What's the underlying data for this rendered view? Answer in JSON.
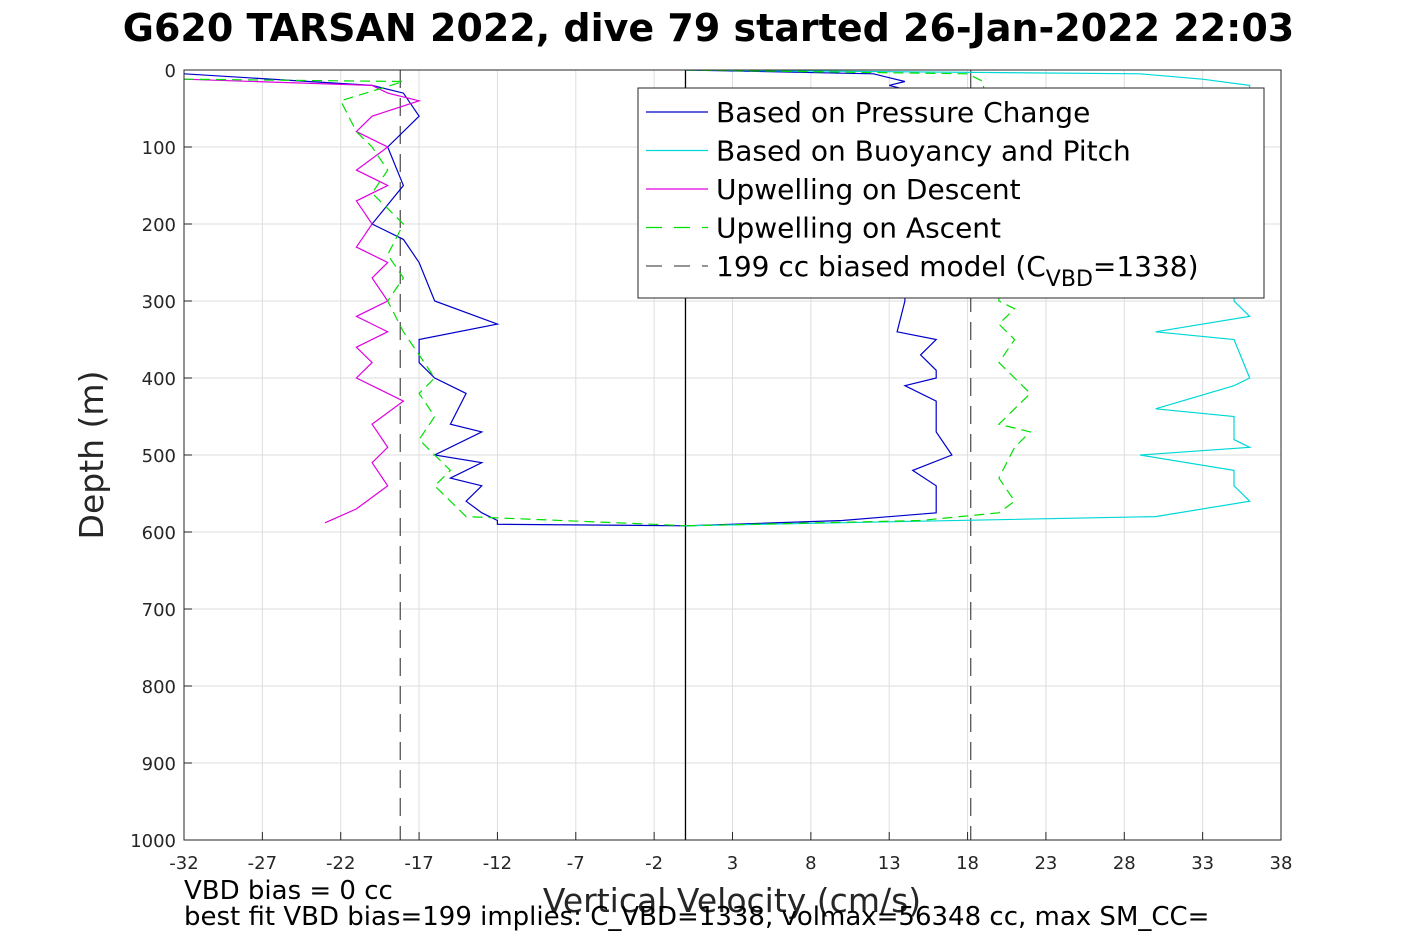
{
  "title": "G620 TARSAN 2022, dive 79 started 26-Jan-2022 22:03",
  "footer": {
    "line1": "VBD bias = 0 cc",
    "line2": "best fit VBD bias=199 implies: C_VBD=1338, volmax=56348 cc, max SM_CC="
  },
  "chart_data": {
    "type": "line",
    "xlabel": "Vertical Velocity (cm/s)",
    "ylabel": "Depth (m)",
    "xlim": [
      -32,
      38
    ],
    "ylim": [
      1000,
      0
    ],
    "y_reversed": true,
    "xticks": [
      -32,
      -27,
      -22,
      -17,
      -12,
      -7,
      -2,
      3,
      8,
      13,
      18,
      23,
      28,
      33,
      38
    ],
    "yticks": [
      0,
      100,
      200,
      300,
      400,
      500,
      600,
      700,
      800,
      900,
      1000
    ],
    "grid": true,
    "legend_position": "top-right",
    "reference_lines": [
      {
        "x": 0,
        "style": "solid",
        "color": "#000000"
      },
      {
        "x": -18.2,
        "style": "dashed",
        "color": "#555555"
      },
      {
        "x": 18.2,
        "style": "dashed",
        "color": "#555555"
      }
    ],
    "series": [
      {
        "name": "Based on Pressure Change",
        "color": "#0000cc",
        "style": "solid",
        "segments": [
          {
            "x": [
              -32,
              -20,
              -18,
              -17,
              -19,
              -18,
              -20,
              -18,
              -17,
              -16,
              -12,
              -17,
              -17,
              -16,
              -14,
              -15,
              -13,
              -16,
              -13,
              -15,
              -13,
              -14,
              -13,
              -12,
              -12,
              0
            ],
            "y": [
              5,
              20,
              30,
              60,
              100,
              150,
              200,
              220,
              250,
              300,
              330,
              350,
              380,
              400,
              420,
              460,
              470,
              500,
              510,
              530,
              540,
              560,
              575,
              585,
              590,
              592
            ]
          },
          {
            "x": [
              0,
              12,
              13,
              14,
              13,
              14,
              14,
              13.5,
              16,
              15,
              16,
              16,
              14,
              16,
              16,
              17,
              14.5,
              16,
              16,
              16,
              10,
              0
            ],
            "y": [
              0,
              5,
              10,
              15,
              20,
              25,
              300,
              340,
              350,
              370,
              390,
              400,
              410,
              430,
              470,
              500,
              520,
              540,
              560,
              575,
              585,
              592
            ]
          }
        ]
      },
      {
        "name": "Based on Buoyancy and Pitch",
        "color": "#00d8d8",
        "style": "solid",
        "segments": [
          {
            "x": [
              0,
              29,
              33,
              36,
              35,
              36,
              30,
              35,
              36,
              35,
              30,
              35,
              35,
              36,
              29,
              35,
              35,
              36,
              30,
              0
            ],
            "y": [
              0,
              5,
              12,
              20,
              300,
              320,
              340,
              350,
              400,
              410,
              440,
              450,
              480,
              490,
              500,
              520,
              540,
              560,
              580,
              592
            ]
          }
        ]
      },
      {
        "name": "Upwelling on Descent",
        "color": "#e000e0",
        "style": "solid",
        "segments": [
          {
            "x": [
              -32,
              -20,
              -19,
              -17,
              -20,
              -21,
              -19,
              -21,
              -19,
              -21,
              -20,
              -21,
              -19,
              -20,
              -19,
              -21,
              -19,
              -21,
              -20,
              -21,
              -18,
              -20,
              -19,
              -20,
              -19,
              -21,
              -23
            ],
            "y": [
              12,
              20,
              30,
              40,
              60,
              80,
              100,
              130,
              150,
              170,
              200,
              230,
              250,
              270,
              300,
              320,
              340,
              360,
              380,
              400,
              430,
              460,
              490,
              510,
              540,
              570,
              588
            ]
          }
        ]
      },
      {
        "name": "Upwelling on Ascent",
        "color": "#00e000",
        "style": "dashed",
        "segments": [
          {
            "x": [
              -32,
              -18,
              -22,
              -21,
              -20,
              -19,
              -20,
              -18,
              -19,
              -18,
              -19,
              -18,
              -17,
              -16,
              -17,
              -16,
              -17,
              -16,
              -15,
              -16,
              -15,
              -14,
              -2,
              0
            ],
            "y": [
              12,
              15,
              40,
              80,
              100,
              130,
              160,
              200,
              240,
              270,
              300,
              340,
              370,
              400,
              420,
              450,
              480,
              500,
              520,
              540,
              560,
              580,
              590,
              592
            ]
          },
          {
            "x": [
              0,
              18,
              19,
              20,
              21,
              20,
              21,
              20,
              21,
              22,
              21,
              20,
              22,
              21,
              20,
              21,
              20,
              15,
              0
            ],
            "y": [
              0,
              5,
              15,
              300,
              310,
              330,
              350,
              380,
              400,
              420,
              440,
              460,
              470,
              490,
              530,
              560,
              575,
              585,
              592
            ]
          }
        ]
      },
      {
        "name": "199 cc biased model (C",
        "name_sub": "VBD",
        "name_tail": "=1338)",
        "color": "#555555",
        "style": "dashed",
        "segments": []
      }
    ]
  }
}
